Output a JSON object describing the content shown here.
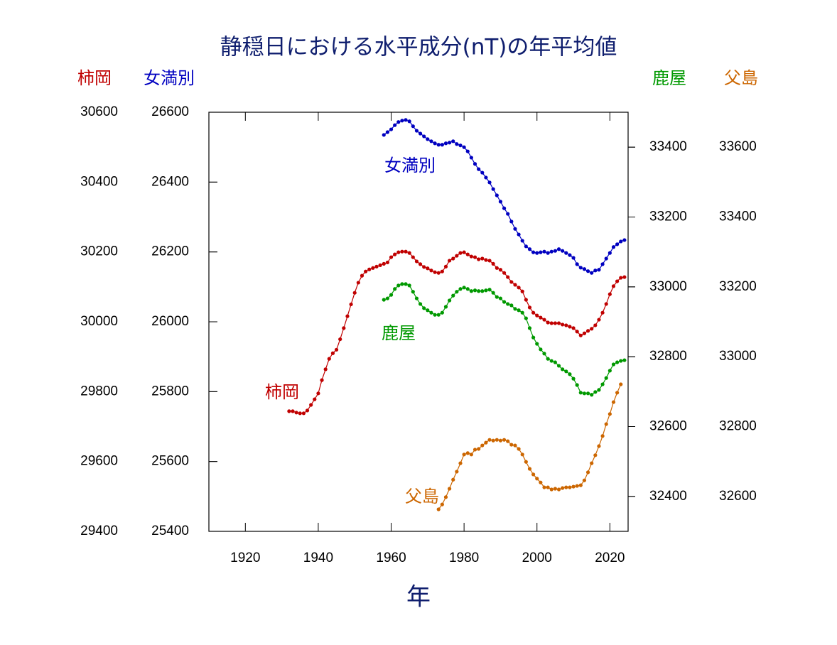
{
  "chart_data": {
    "type": "line",
    "title": "静穏日における水平成分(nT)の年平均値",
    "xlabel": "年",
    "xlim": [
      1910,
      2025
    ],
    "xticks": [
      1920,
      1940,
      1960,
      1980,
      2000,
      2020
    ],
    "series": [
      {
        "name": "柿岡",
        "color": "#c00000",
        "ylim": [
          29400,
          30600
        ],
        "yticks": [
          29400,
          29600,
          29800,
          30000,
          30200,
          30400,
          30600
        ],
        "x": [
          1932,
          1933,
          1934,
          1935,
          1936,
          1937,
          1938,
          1939,
          1940,
          1941,
          1942,
          1943,
          1944,
          1945,
          1946,
          1947,
          1948,
          1949,
          1950,
          1951,
          1952,
          1953,
          1954,
          1955,
          1956,
          1957,
          1958,
          1959,
          1960,
          1961,
          1962,
          1963,
          1964,
          1965,
          1966,
          1967,
          1968,
          1969,
          1970,
          1971,
          1972,
          1973,
          1974,
          1975,
          1976,
          1977,
          1978,
          1979,
          1980,
          1981,
          1982,
          1983,
          1984,
          1985,
          1986,
          1987,
          1988,
          1989,
          1990,
          1991,
          1992,
          1993,
          1994,
          1995,
          1996,
          1997,
          1998,
          1999,
          2000,
          2001,
          2002,
          2003,
          2004,
          2005,
          2006,
          2007,
          2008,
          2009,
          2010,
          2011,
          2012,
          2013,
          2014,
          2015,
          2016,
          2017,
          2018,
          2019,
          2020,
          2021,
          2022,
          2023,
          2024
        ],
        "values": [
          29744,
          29744,
          29740,
          29738,
          29738,
          29746,
          29762,
          29778,
          29795,
          29833,
          29864,
          29894,
          29910,
          29920,
          29950,
          29982,
          30016,
          30050,
          30083,
          30112,
          30132,
          30144,
          30150,
          30154,
          30158,
          30162,
          30166,
          30170,
          30185,
          30193,
          30199,
          30201,
          30201,
          30197,
          30185,
          30173,
          30165,
          30157,
          30153,
          30147,
          30142,
          30140,
          30144,
          30158,
          30175,
          30181,
          30189,
          30197,
          30199,
          30193,
          30187,
          30185,
          30179,
          30181,
          30177,
          30175,
          30166,
          30154,
          30149,
          30140,
          30128,
          30114,
          30106,
          30098,
          30087,
          30063,
          30041,
          30026,
          30018,
          30012,
          30006,
          29998,
          29996,
          29996,
          29996,
          29992,
          29990,
          29986,
          29982,
          29972,
          29961,
          29967,
          29974,
          29980,
          29990,
          30006,
          30026,
          30051,
          30079,
          30102,
          30116,
          30126,
          30128
        ]
      },
      {
        "name": "女満別",
        "color": "#0000c0",
        "ylim": [
          25400,
          26600
        ],
        "yticks": [
          25400,
          25600,
          25800,
          26000,
          26200,
          26400,
          26600
        ],
        "x": [
          1958,
          1959,
          1960,
          1961,
          1962,
          1963,
          1964,
          1965,
          1966,
          1967,
          1968,
          1969,
          1970,
          1971,
          1972,
          1973,
          1974,
          1975,
          1976,
          1977,
          1978,
          1979,
          1980,
          1981,
          1982,
          1983,
          1984,
          1985,
          1986,
          1987,
          1988,
          1989,
          1990,
          1991,
          1992,
          1993,
          1994,
          1995,
          1996,
          1997,
          1998,
          1999,
          2000,
          2001,
          2002,
          2003,
          2004,
          2005,
          2006,
          2007,
          2008,
          2009,
          2010,
          2011,
          2012,
          2013,
          2014,
          2015,
          2016,
          2017,
          2018,
          2019,
          2020,
          2021,
          2022,
          2023,
          2024
        ],
        "values": [
          26535,
          26543,
          26551,
          26563,
          26572,
          26576,
          26578,
          26574,
          26560,
          26547,
          26539,
          26531,
          26523,
          26517,
          26511,
          26507,
          26507,
          26511,
          26513,
          26517,
          26509,
          26505,
          26500,
          26488,
          26470,
          26452,
          26437,
          26427,
          26413,
          26399,
          26380,
          26362,
          26344,
          26325,
          26309,
          26287,
          26266,
          26250,
          26232,
          26216,
          26208,
          26199,
          26197,
          26199,
          26201,
          26197,
          26201,
          26203,
          26208,
          26203,
          26197,
          26191,
          26183,
          26165,
          26155,
          26151,
          26145,
          26140,
          26147,
          26149,
          26165,
          26181,
          26197,
          26214,
          26222,
          26230,
          26234
        ]
      },
      {
        "name": "鹿屋",
        "color": "#009900",
        "ylim": [
          32300,
          33500
        ],
        "yticks": [
          32400,
          32600,
          32800,
          33000,
          33200,
          33400
        ],
        "x": [
          1958,
          1959,
          1960,
          1961,
          1962,
          1963,
          1964,
          1965,
          1966,
          1967,
          1968,
          1969,
          1970,
          1971,
          1972,
          1973,
          1974,
          1975,
          1976,
          1977,
          1978,
          1979,
          1980,
          1981,
          1982,
          1983,
          1984,
          1985,
          1986,
          1987,
          1988,
          1989,
          1990,
          1991,
          1992,
          1993,
          1994,
          1995,
          1996,
          1997,
          1998,
          1999,
          2000,
          2001,
          2002,
          2003,
          2004,
          2005,
          2006,
          2007,
          2008,
          2009,
          2010,
          2011,
          2012,
          2013,
          2014,
          2015,
          2016,
          2017,
          2018,
          2019,
          2020,
          2021,
          2022,
          2023,
          2024
        ],
        "values": [
          32963,
          32967,
          32977,
          32994,
          33004,
          33008,
          33008,
          33004,
          32986,
          32967,
          32951,
          32939,
          32933,
          32926,
          32920,
          32920,
          32926,
          32943,
          32961,
          32975,
          32986,
          32994,
          32998,
          32994,
          32988,
          32990,
          32988,
          32988,
          32990,
          32992,
          32983,
          32971,
          32967,
          32957,
          32951,
          32947,
          32937,
          32933,
          32926,
          32910,
          32882,
          32855,
          32837,
          32821,
          32809,
          32794,
          32788,
          32784,
          32774,
          32764,
          32758,
          32750,
          32737,
          32719,
          32697,
          32695,
          32695,
          32691,
          32699,
          32705,
          32721,
          32739,
          32760,
          32778,
          32784,
          32788,
          32790
        ]
      },
      {
        "name": "父島",
        "color": "#cc6600",
        "ylim": [
          32500,
          33700
        ],
        "yticks": [
          32600,
          32800,
          33000,
          33200,
          33400,
          33600
        ],
        "x": [
          1973,
          1974,
          1975,
          1976,
          1977,
          1978,
          1979,
          1980,
          1981,
          1982,
          1983,
          1984,
          1985,
          1986,
          1987,
          1988,
          1989,
          1990,
          1991,
          1992,
          1993,
          1994,
          1995,
          1996,
          1997,
          1998,
          1999,
          2000,
          2001,
          2002,
          2003,
          2004,
          2005,
          2006,
          2007,
          2008,
          2009,
          2010,
          2011,
          2012,
          2013,
          2014,
          2015,
          2016,
          2017,
          2018,
          2019,
          2020,
          2021,
          2022,
          2023
        ],
        "values": [
          32563,
          32577,
          32598,
          32622,
          32648,
          32671,
          32695,
          32720,
          32724,
          32720,
          32734,
          32736,
          32746,
          32754,
          32762,
          32760,
          32762,
          32760,
          32762,
          32758,
          32748,
          32746,
          32736,
          32720,
          32699,
          32679,
          32663,
          32651,
          32640,
          32626,
          32626,
          32620,
          32622,
          32620,
          32624,
          32626,
          32626,
          32628,
          32630,
          32632,
          32646,
          32669,
          32695,
          32718,
          32744,
          32773,
          32807,
          32836,
          32870,
          32897,
          32921
        ]
      }
    ]
  }
}
